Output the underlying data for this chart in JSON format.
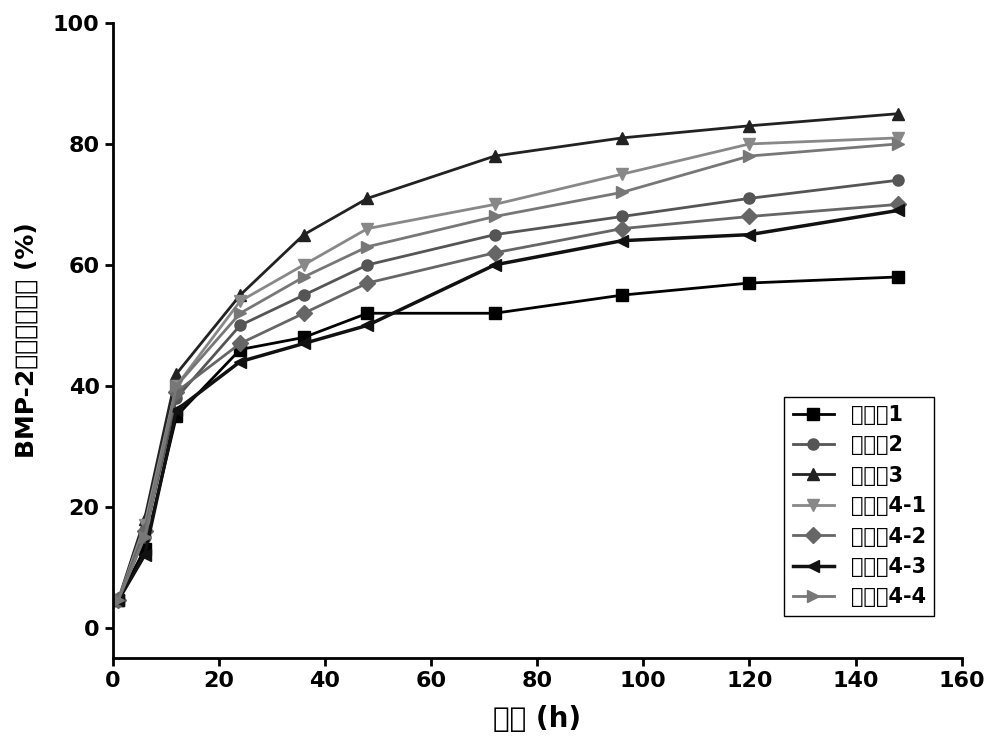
{
  "series": [
    {
      "label": "实施例1",
      "color": "#000000",
      "marker": "s",
      "marker_color": "#000000",
      "linewidth": 2.0,
      "x": [
        1,
        6,
        12,
        24,
        36,
        48,
        72,
        96,
        120,
        148
      ],
      "y": [
        4.5,
        13,
        35,
        46,
        48,
        52,
        52,
        55,
        57,
        58
      ]
    },
    {
      "label": "实施例2",
      "color": "#555555",
      "marker": "o",
      "marker_color": "#555555",
      "linewidth": 2.0,
      "x": [
        1,
        6,
        12,
        24,
        36,
        48,
        72,
        96,
        120,
        148
      ],
      "y": [
        4.5,
        15,
        38,
        50,
        55,
        60,
        65,
        68,
        71,
        74
      ]
    },
    {
      "label": "实施例3",
      "color": "#222222",
      "marker": "^",
      "marker_color": "#222222",
      "linewidth": 2.0,
      "x": [
        1,
        6,
        12,
        24,
        36,
        48,
        72,
        96,
        120,
        148
      ],
      "y": [
        4.5,
        18,
        42,
        55,
        65,
        71,
        78,
        81,
        83,
        85
      ]
    },
    {
      "label": "实施例4-1",
      "color": "#888888",
      "marker": "v",
      "marker_color": "#888888",
      "linewidth": 2.0,
      "x": [
        1,
        6,
        12,
        24,
        36,
        48,
        72,
        96,
        120,
        148
      ],
      "y": [
        4.5,
        17,
        40,
        54,
        60,
        66,
        70,
        75,
        80,
        81
      ]
    },
    {
      "label": "实施例4-2",
      "color": "#666666",
      "marker": "D",
      "marker_color": "#666666",
      "linewidth": 2.0,
      "x": [
        1,
        6,
        12,
        24,
        36,
        48,
        72,
        96,
        120,
        148
      ],
      "y": [
        4.5,
        16,
        39,
        47,
        52,
        57,
        62,
        66,
        68,
        70
      ]
    },
    {
      "label": "实施例4-3",
      "color": "#111111",
      "marker": "<",
      "marker_color": "#111111",
      "linewidth": 2.5,
      "x": [
        1,
        6,
        12,
        24,
        36,
        48,
        72,
        96,
        120,
        148
      ],
      "y": [
        4.5,
        12,
        36,
        44,
        47,
        50,
        60,
        64,
        65,
        69
      ]
    },
    {
      "label": "实施例4-4",
      "color": "#777777",
      "marker": ">",
      "marker_color": "#777777",
      "linewidth": 2.0,
      "x": [
        1,
        6,
        12,
        24,
        36,
        48,
        72,
        96,
        120,
        148
      ],
      "y": [
        4.5,
        15,
        40,
        52,
        58,
        63,
        68,
        72,
        78,
        80
      ]
    }
  ],
  "xlabel": "时间 (h)",
  "ylabel": "BMP-2累积释放曲线 (%)",
  "xlim": [
    0,
    160
  ],
  "ylim": [
    -5,
    100
  ],
  "xticks": [
    0,
    20,
    40,
    60,
    80,
    100,
    120,
    140,
    160
  ],
  "yticks": [
    0,
    20,
    40,
    60,
    80,
    100
  ],
  "background_color": "#ffffff",
  "marker_size": 8
}
